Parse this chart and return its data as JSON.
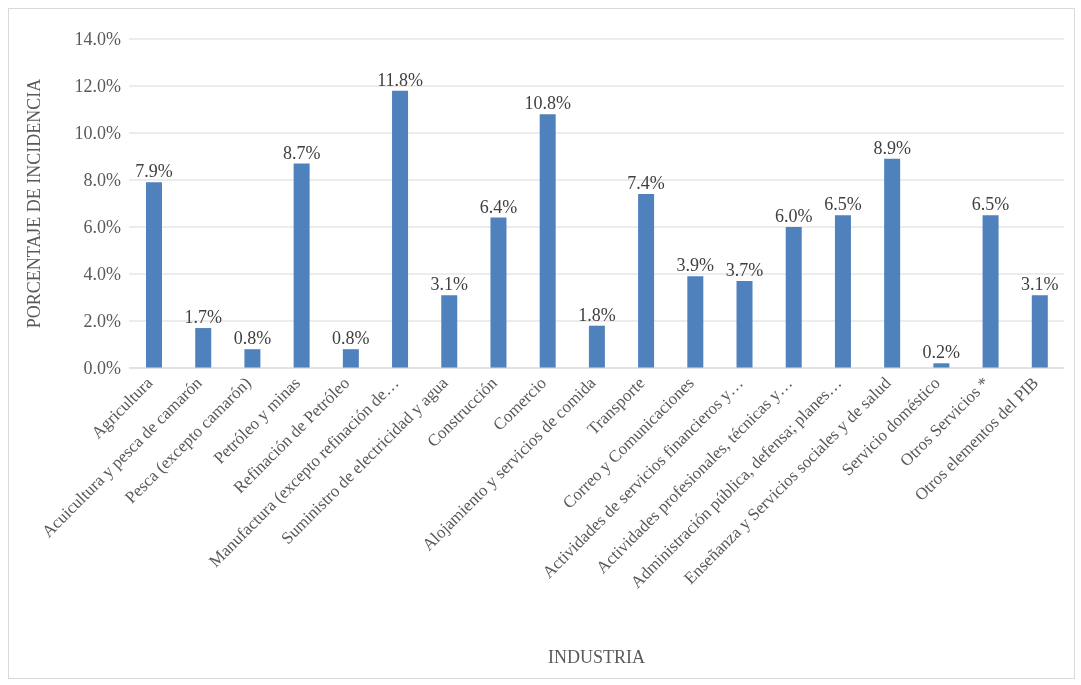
{
  "chart_data": {
    "type": "bar",
    "xlabel": "INDUSTRIA",
    "ylabel": "PORCENTAJE DE INCIDENCIA",
    "categories": [
      "Agricultura",
      "Acuicultura y pesca de camarón",
      "Pesca (excepto camarón)",
      "Petróleo y minas",
      "Refinación de Petróleo",
      "Manufactura (excepto refinación de…",
      "Suministro de electricidad y agua",
      "Construcción",
      "Comercio",
      "Alojamiento y servicios de comida",
      "Transporte",
      "Correo y Comunicaciones",
      "Actividades de servicios financieros y…",
      "Actividades profesionales, técnicas y…",
      "Administración pública, defensa; planes…",
      "Enseñanza  y Servicios sociales y de salud",
      "Servicio doméstico",
      "Otros Servicios *",
      "Otros elementos del PIB"
    ],
    "values": [
      7.9,
      1.7,
      0.8,
      8.7,
      0.8,
      11.8,
      3.1,
      6.4,
      10.8,
      1.8,
      7.4,
      3.9,
      3.7,
      6.0,
      6.5,
      8.9,
      0.2,
      6.5,
      3.1
    ],
    "value_labels": [
      "7.9%",
      "1.7%",
      "0.8%",
      "8.7%",
      "0.8%",
      "11.8%",
      "3.1%",
      "6.4%",
      "10.8%",
      "1.8%",
      "7.4%",
      "3.9%",
      "3.7%",
      "6.0%",
      "6.5%",
      "8.9%",
      "0.2%",
      "6.5%",
      "3.1%"
    ],
    "color": "#4f81bd",
    "ylim": [
      0,
      14
    ],
    "yticks": [
      {
        "value": 0,
        "label": "0.0%"
      },
      {
        "value": 2,
        "label": "2.0%"
      },
      {
        "value": 4,
        "label": "4.0%"
      },
      {
        "value": 6,
        "label": "6.0%"
      },
      {
        "value": 8,
        "label": "8.0%"
      },
      {
        "value": 10,
        "label": "10.0%"
      },
      {
        "value": 12,
        "label": "12.0%"
      },
      {
        "value": 14,
        "label": "14.0%"
      }
    ],
    "grid": "y"
  }
}
